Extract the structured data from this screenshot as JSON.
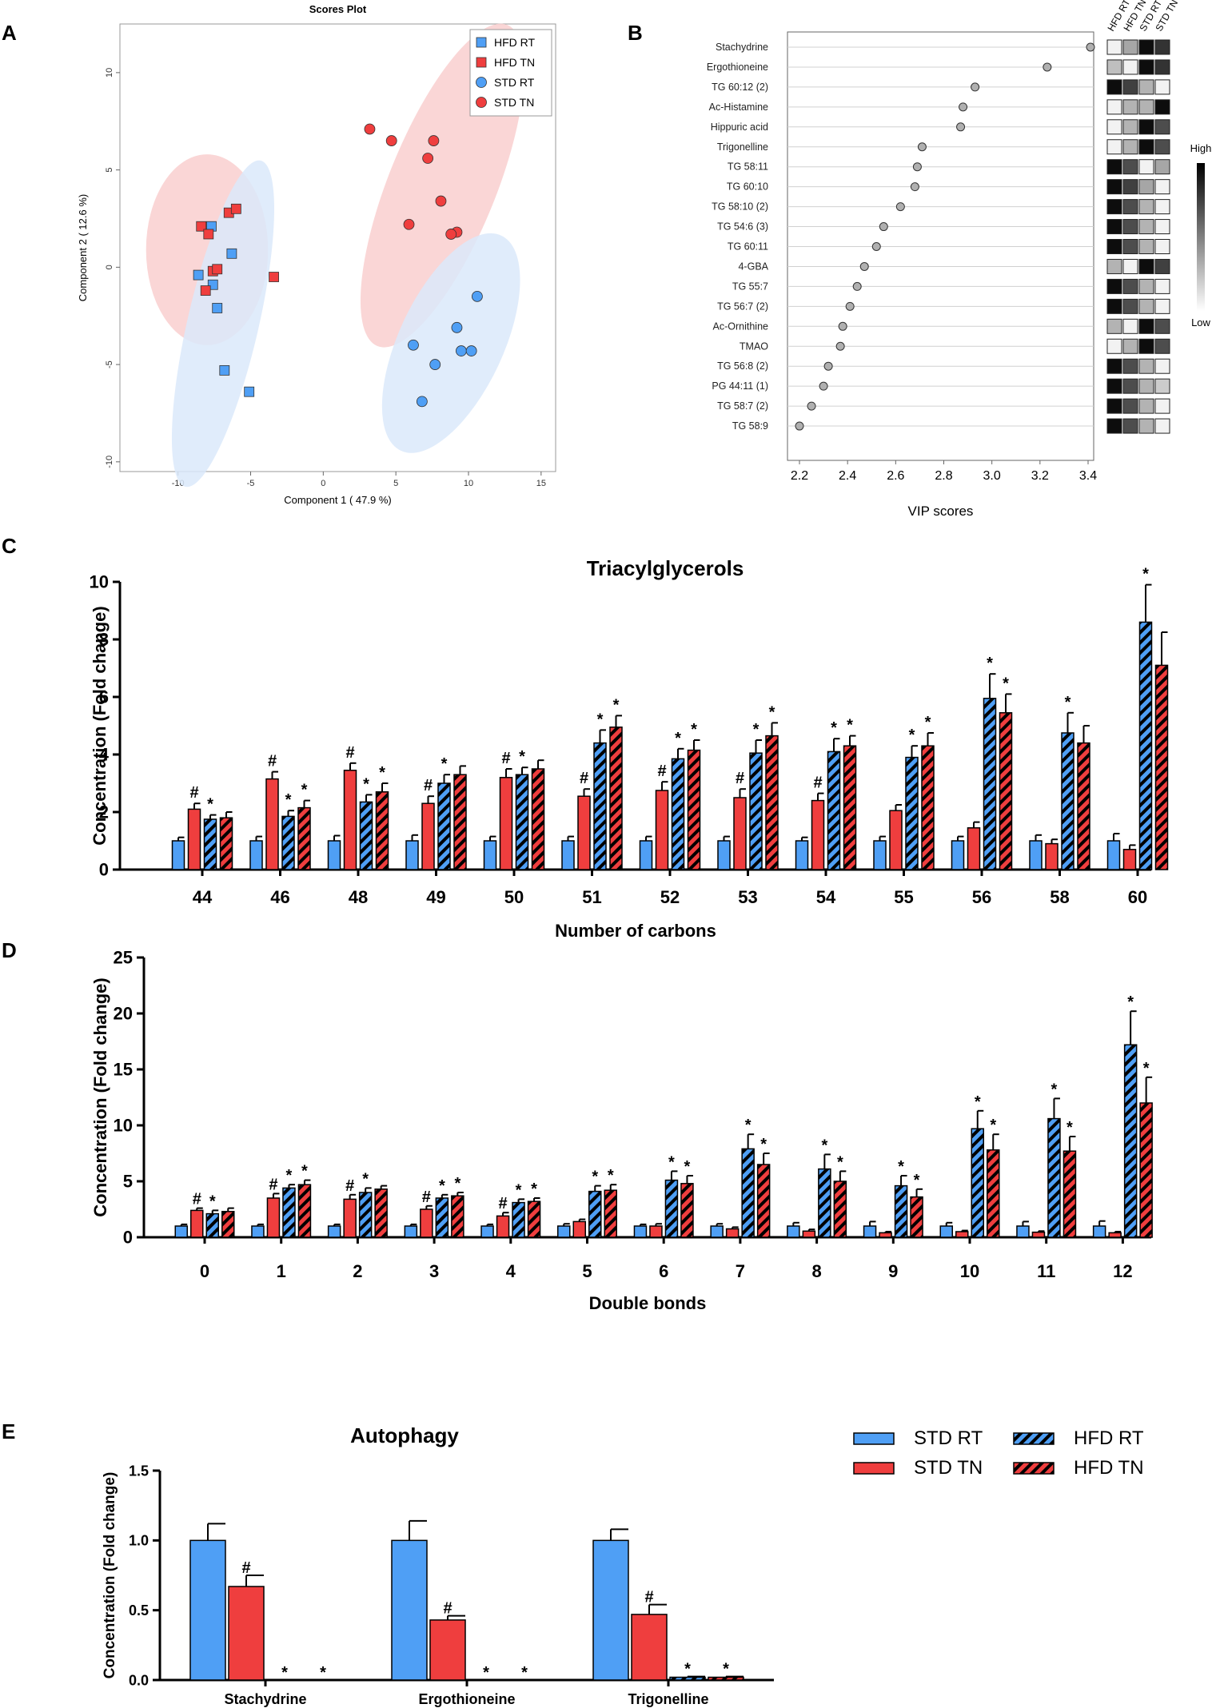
{
  "colors": {
    "blue": "#4f9ff5",
    "red": "#ef3e3e",
    "blue_ellipse": "#dbe9fa",
    "red_ellipse": "#f9cfcf",
    "dot_gray": "#b0b0b0",
    "black": "#000000"
  },
  "panels": {
    "A": "A",
    "B": "B",
    "C": "C",
    "D": "D",
    "E": "E"
  },
  "chart_data": [
    {
      "panel": "A",
      "type": "scatter",
      "title": "Scores Plot",
      "xlabel": "Component 1 ( 47.9 %)",
      "ylabel": "Component 2 ( 12.6 %)",
      "xlim": [
        -14,
        16
      ],
      "ylim": [
        -10.5,
        12.5
      ],
      "xticks": [
        "-10",
        "-5",
        "0",
        "5",
        "10",
        "15"
      ],
      "yticks": [
        "-10",
        "-5",
        "0",
        "5",
        "10"
      ],
      "legend": [
        "HFD RT",
        "HFD TN",
        "STD RT",
        "STD TN"
      ],
      "ellipses": [
        {
          "group": "HFD TN",
          "cx": -8,
          "cy": 0.9,
          "rx": 4.2,
          "ry": 4.9,
          "angle": 0
        },
        {
          "group": "HFD RT",
          "cx": -6.9,
          "cy": -2.9,
          "rx": 2.45,
          "ry": 8.6,
          "angle": 13
        },
        {
          "group": "STD TN",
          "cx": 8.2,
          "cy": 4.2,
          "rx": 3.7,
          "ry": 8.9,
          "angle": 22
        },
        {
          "group": "STD RT",
          "cx": 8.8,
          "cy": -3.9,
          "rx": 3.6,
          "ry": 6.1,
          "angle": 25
        }
      ],
      "series": [
        {
          "name": "HFD RT",
          "marker": "square",
          "color": "blue",
          "points": [
            [
              -7.7,
              2.1
            ],
            [
              -8.6,
              -0.4
            ],
            [
              -7.6,
              -0.9
            ],
            [
              -6.3,
              0.7
            ],
            [
              -7.3,
              -2.1
            ],
            [
              -6.8,
              -5.3
            ],
            [
              -5.1,
              -6.4
            ]
          ]
        },
        {
          "name": "HFD TN",
          "marker": "square",
          "color": "red",
          "points": [
            [
              -8.4,
              2.1
            ],
            [
              -7.9,
              1.7
            ],
            [
              -6.5,
              2.8
            ],
            [
              -6.0,
              3.0
            ],
            [
              -7.6,
              -0.2
            ],
            [
              -8.1,
              -1.2
            ],
            [
              -3.4,
              -0.5
            ],
            [
              -7.3,
              -0.1
            ]
          ]
        },
        {
          "name": "STD RT",
          "marker": "circle",
          "color": "blue",
          "points": [
            [
              10.6,
              -1.5
            ],
            [
              9.2,
              -3.1
            ],
            [
              6.2,
              -4.0
            ],
            [
              9.5,
              -4.3
            ],
            [
              10.2,
              -4.3
            ],
            [
              7.7,
              -5.0
            ],
            [
              6.8,
              -6.9
            ]
          ]
        },
        {
          "name": "STD TN",
          "marker": "circle",
          "color": "red",
          "points": [
            [
              3.2,
              7.1
            ],
            [
              4.7,
              6.5
            ],
            [
              7.6,
              6.5
            ],
            [
              7.2,
              5.6
            ],
            [
              8.1,
              3.4
            ],
            [
              5.9,
              2.2
            ],
            [
              9.2,
              1.8
            ],
            [
              8.8,
              1.7
            ]
          ]
        }
      ]
    },
    {
      "panel": "B",
      "type": "scatter",
      "xlabel": "VIP scores",
      "xlim": [
        2.2,
        3.4
      ],
      "xticks": [
        "2.2",
        "2.4",
        "2.6",
        "2.8",
        "3.0",
        "3.2",
        "3.4"
      ],
      "heatmap_columns": [
        "HFD RT",
        "HFD TN",
        "STD RT",
        "STD TN"
      ],
      "scale_high": "High",
      "scale_low": "Low",
      "rows": [
        {
          "label": "Stachydrine",
          "vip": 3.41,
          "heat": [
            0.05,
            0.35,
            0.95,
            0.8
          ]
        },
        {
          "label": "Ergothioneine",
          "vip": 3.23,
          "heat": [
            0.25,
            0.05,
            0.95,
            0.8
          ]
        },
        {
          "label": "TG 60:12 (2)",
          "vip": 2.93,
          "heat": [
            0.95,
            0.75,
            0.3,
            0.05
          ]
        },
        {
          "label": "Ac-Histamine",
          "vip": 2.88,
          "heat": [
            0.05,
            0.3,
            0.3,
            0.95
          ]
        },
        {
          "label": "Hippuric acid",
          "vip": 2.87,
          "heat": [
            0.05,
            0.3,
            0.95,
            0.7
          ]
        },
        {
          "label": "Trigonelline",
          "vip": 2.71,
          "heat": [
            0.05,
            0.3,
            0.95,
            0.7
          ]
        },
        {
          "label": "TG 58:11",
          "vip": 2.69,
          "heat": [
            0.95,
            0.7,
            0.05,
            0.35
          ]
        },
        {
          "label": "TG 60:10",
          "vip": 2.68,
          "heat": [
            0.95,
            0.75,
            0.35,
            0.05
          ]
        },
        {
          "label": "TG 58:10 (2)",
          "vip": 2.62,
          "heat": [
            0.95,
            0.7,
            0.3,
            0.05
          ]
        },
        {
          "label": "TG 54:6 (3)",
          "vip": 2.55,
          "heat": [
            0.95,
            0.7,
            0.3,
            0.05
          ]
        },
        {
          "label": "TG 60:11",
          "vip": 2.52,
          "heat": [
            0.95,
            0.7,
            0.3,
            0.05
          ]
        },
        {
          "label": "4-GBA",
          "vip": 2.47,
          "heat": [
            0.3,
            0.05,
            0.95,
            0.75
          ]
        },
        {
          "label": "TG 55:7",
          "vip": 2.44,
          "heat": [
            0.95,
            0.7,
            0.3,
            0.05
          ]
        },
        {
          "label": "TG 56:7 (2)",
          "vip": 2.41,
          "heat": [
            0.95,
            0.7,
            0.3,
            0.05
          ]
        },
        {
          "label": "Ac-Ornithine",
          "vip": 2.38,
          "heat": [
            0.3,
            0.05,
            0.95,
            0.7
          ]
        },
        {
          "label": "TMAO",
          "vip": 2.37,
          "heat": [
            0.05,
            0.3,
            0.95,
            0.7
          ]
        },
        {
          "label": "TG 56:8 (2)",
          "vip": 2.32,
          "heat": [
            0.95,
            0.7,
            0.3,
            0.05
          ]
        },
        {
          "label": "PG 44:11 (1)",
          "vip": 2.3,
          "heat": [
            0.95,
            0.7,
            0.3,
            0.2
          ]
        },
        {
          "label": "TG 58:7 (2)",
          "vip": 2.25,
          "heat": [
            0.95,
            0.7,
            0.3,
            0.05
          ]
        },
        {
          "label": "TG 58:9",
          "vip": 2.2,
          "heat": [
            0.95,
            0.7,
            0.3,
            0.05
          ]
        }
      ]
    },
    {
      "panel": "C",
      "type": "bar",
      "title": "Triacylglycerols",
      "xlabel": "Number of carbons",
      "ylabel": "Concentration (Fold change)",
      "ylim": [
        0,
        10
      ],
      "yticks": [
        "0",
        "2",
        "4",
        "6",
        "8",
        "10"
      ],
      "categories": [
        "44",
        "46",
        "48",
        "49",
        "50",
        "51",
        "52",
        "53",
        "54",
        "55",
        "56",
        "58",
        "60"
      ],
      "series": [
        {
          "name": "STD RT",
          "values": [
            1,
            1,
            1,
            1,
            1,
            1,
            1,
            1,
            1,
            1,
            1,
            1,
            1
          ],
          "errors": [
            0.12,
            0.15,
            0.18,
            0.2,
            0.15,
            0.15,
            0.15,
            0.15,
            0.12,
            0.15,
            0.15,
            0.2,
            0.25
          ],
          "marks": [
            "",
            "",
            "",
            "",
            "",
            "",
            "",
            "",
            "",
            "",
            "",
            "",
            ""
          ]
        },
        {
          "name": "STD TN",
          "values": [
            2.1,
            3.15,
            3.45,
            2.3,
            3.2,
            2.55,
            2.75,
            2.5,
            2.4,
            2.05,
            1.45,
            0.9,
            0.7
          ],
          "errors": [
            0.2,
            0.25,
            0.25,
            0.25,
            0.3,
            0.25,
            0.3,
            0.3,
            0.25,
            0.2,
            0.2,
            0.15,
            0.15
          ],
          "marks": [
            "#",
            "#",
            "#",
            "#",
            "#",
            "#",
            "#",
            "#",
            "#",
            "",
            "",
            "",
            ""
          ]
        },
        {
          "name": "HFD RT",
          "values": [
            1.75,
            1.85,
            2.35,
            3.0,
            3.3,
            4.4,
            3.85,
            4.05,
            4.1,
            3.9,
            5.95,
            4.75,
            8.6
          ],
          "errors": [
            0.15,
            0.2,
            0.25,
            0.3,
            0.25,
            0.45,
            0.35,
            0.45,
            0.45,
            0.4,
            0.85,
            0.7,
            1.3
          ],
          "marks": [
            "*",
            "*",
            "*",
            "*",
            "*",
            "*",
            "*",
            "*",
            "*",
            "*",
            "*",
            "*",
            "*"
          ]
        },
        {
          "name": "HFD TN",
          "values": [
            1.8,
            2.15,
            2.7,
            3.3,
            3.5,
            4.95,
            4.15,
            4.65,
            4.3,
            4.3,
            5.45,
            4.4,
            7.1
          ],
          "errors": [
            0.2,
            0.25,
            0.3,
            0.3,
            0.3,
            0.4,
            0.35,
            0.45,
            0.35,
            0.45,
            0.65,
            0.6,
            1.15
          ],
          "marks": [
            "",
            "*",
            "*",
            "",
            "",
            "*",
            "*",
            "*",
            "*",
            "*",
            "*",
            "",
            ""
          ]
        }
      ]
    },
    {
      "panel": "D",
      "type": "bar",
      "xlabel": "Double bonds",
      "ylabel": "Concentration (Fold change)",
      "ylim": [
        0,
        25
      ],
      "yticks": [
        "0",
        "5",
        "10",
        "15",
        "20",
        "25"
      ],
      "categories": [
        "0",
        "1",
        "2",
        "3",
        "4",
        "5",
        "6",
        "7",
        "8",
        "9",
        "10",
        "11",
        "12"
      ],
      "series": [
        {
          "name": "STD RT",
          "values": [
            1,
            1,
            1,
            1,
            1,
            1,
            1,
            1,
            1,
            1,
            1,
            1,
            1
          ],
          "errors": [
            0.15,
            0.15,
            0.15,
            0.15,
            0.15,
            0.2,
            0.15,
            0.2,
            0.3,
            0.4,
            0.3,
            0.4,
            0.45
          ],
          "marks": [
            "",
            "",
            "",
            "",
            "",
            "",
            "",
            "",
            "",
            "",
            "",
            "",
            ""
          ]
        },
        {
          "name": "STD TN",
          "values": [
            2.4,
            3.5,
            3.4,
            2.5,
            1.9,
            1.4,
            1.0,
            0.75,
            0.55,
            0.4,
            0.5,
            0.45,
            0.4
          ],
          "errors": [
            0.2,
            0.4,
            0.4,
            0.3,
            0.3,
            0.2,
            0.2,
            0.15,
            0.15,
            0.1,
            0.1,
            0.1,
            0.1
          ],
          "marks": [
            "#",
            "#",
            "#",
            "#",
            "#",
            "",
            "",
            "",
            "",
            "",
            "",
            "",
            ""
          ]
        },
        {
          "name": "HFD RT",
          "values": [
            2.1,
            4.4,
            4.0,
            3.5,
            3.1,
            4.1,
            5.1,
            7.9,
            6.1,
            4.6,
            9.7,
            10.6,
            17.2
          ],
          "errors": [
            0.3,
            0.3,
            0.4,
            0.3,
            0.3,
            0.5,
            0.8,
            1.3,
            1.3,
            0.9,
            1.6,
            1.8,
            3.0
          ],
          "marks": [
            "*",
            "*",
            "*",
            "*",
            "*",
            "*",
            "*",
            "*",
            "*",
            "*",
            "*",
            "*",
            "*"
          ]
        },
        {
          "name": "HFD TN",
          "values": [
            2.3,
            4.7,
            4.3,
            3.7,
            3.2,
            4.2,
            4.8,
            6.5,
            5.0,
            3.6,
            7.8,
            7.7,
            12.0
          ],
          "errors": [
            0.3,
            0.4,
            0.3,
            0.3,
            0.3,
            0.5,
            0.7,
            1.0,
            0.9,
            0.7,
            1.4,
            1.3,
            2.3
          ],
          "marks": [
            "",
            "*",
            "",
            "*",
            "*",
            "*",
            "*",
            "*",
            "*",
            "*",
            "*",
            "*",
            "*"
          ]
        }
      ]
    },
    {
      "panel": "E",
      "type": "bar",
      "title": "Autophagy",
      "ylabel": "Concentration (Fold change)",
      "ylim": [
        0,
        1.5
      ],
      "yticks": [
        "0.0",
        "0.5",
        "1.0",
        "1.5"
      ],
      "categories": [
        "Stachydrine",
        "Ergothioneine",
        "Trigonelline"
      ],
      "series": [
        {
          "name": "STD RT",
          "values": [
            1.0,
            1.0,
            1.0
          ],
          "errors": [
            0.12,
            0.14,
            0.08
          ],
          "marks": [
            "",
            "",
            ""
          ]
        },
        {
          "name": "STD TN",
          "values": [
            0.67,
            0.43,
            0.47
          ],
          "errors": [
            0.08,
            0.03,
            0.07
          ],
          "marks": [
            "#",
            "#",
            "#"
          ]
        },
        {
          "name": "HFD RT",
          "values": [
            0.0,
            0.0,
            0.02
          ],
          "errors": [
            0,
            0,
            0.005
          ],
          "marks": [
            "*",
            "*",
            "*"
          ]
        },
        {
          "name": "HFD TN",
          "values": [
            0.0,
            0.0,
            0.02
          ],
          "errors": [
            0,
            0,
            0.005
          ],
          "marks": [
            "*",
            "*",
            "*"
          ]
        }
      ],
      "legend": [
        "STD RT",
        "STD TN",
        "HFD RT",
        "HFD TN"
      ]
    }
  ]
}
